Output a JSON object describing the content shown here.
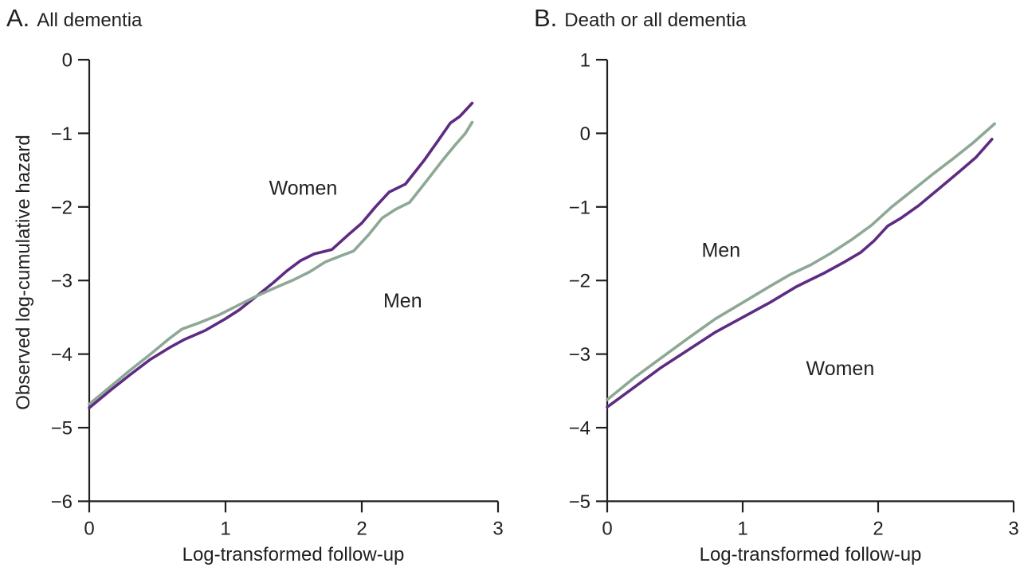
{
  "figure": {
    "background": "#ffffff",
    "text_color": "#231f20",
    "axis_color": "#231f20"
  },
  "chart_data": [
    {
      "type": "line",
      "panel": "A",
      "title_prefix": "A.",
      "title": "All dementia",
      "xlabel": "Log-transformed follow-up",
      "ylabel": "Observed log-cumulative hazard",
      "xlim": [
        0,
        3
      ],
      "ylim": [
        -6,
        0
      ],
      "grid": false,
      "legend_position": "inline-annotations",
      "x_ticks": {
        "values": [
          0,
          1,
          2,
          3
        ],
        "labels": [
          "0",
          "1",
          "2",
          "3"
        ]
      },
      "y_ticks": {
        "values": [
          0,
          -1,
          -2,
          -3,
          -4,
          -5,
          -6
        ],
        "labels": [
          "0",
          "−1",
          "−2",
          "−3",
          "−4",
          "−5",
          "−6"
        ]
      },
      "series": [
        {
          "name": "Women",
          "color": "#5e2b82",
          "annotation": {
            "x": 1.57,
            "y": -1.75
          },
          "points": [
            [
              0,
              -4.73
            ],
            [
              0.15,
              -4.5
            ],
            [
              0.3,
              -4.28
            ],
            [
              0.45,
              -4.07
            ],
            [
              0.6,
              -3.9
            ],
            [
              0.7,
              -3.8
            ],
            [
              0.85,
              -3.68
            ],
            [
              1.0,
              -3.52
            ],
            [
              1.1,
              -3.4
            ],
            [
              1.23,
              -3.21
            ],
            [
              1.35,
              -3.03
            ],
            [
              1.45,
              -2.87
            ],
            [
              1.55,
              -2.73
            ],
            [
              1.65,
              -2.64
            ],
            [
              1.78,
              -2.58
            ],
            [
              1.9,
              -2.38
            ],
            [
              2.0,
              -2.22
            ],
            [
              2.1,
              -2.0
            ],
            [
              2.2,
              -1.8
            ],
            [
              2.32,
              -1.69
            ],
            [
              2.46,
              -1.36
            ],
            [
              2.56,
              -1.1
            ],
            [
              2.65,
              -0.86
            ],
            [
              2.72,
              -0.77
            ],
            [
              2.81,
              -0.59
            ]
          ]
        },
        {
          "name": "Men",
          "color": "#8da894",
          "annotation": {
            "x": 2.3,
            "y": -3.28
          },
          "points": [
            [
              0,
              -4.68
            ],
            [
              0.15,
              -4.45
            ],
            [
              0.3,
              -4.22
            ],
            [
              0.45,
              -4.0
            ],
            [
              0.58,
              -3.8
            ],
            [
              0.68,
              -3.66
            ],
            [
              0.8,
              -3.58
            ],
            [
              0.95,
              -3.47
            ],
            [
              1.1,
              -3.33
            ],
            [
              1.23,
              -3.21
            ],
            [
              1.35,
              -3.11
            ],
            [
              1.5,
              -2.99
            ],
            [
              1.62,
              -2.88
            ],
            [
              1.73,
              -2.75
            ],
            [
              1.84,
              -2.67
            ],
            [
              1.94,
              -2.6
            ],
            [
              2.05,
              -2.38
            ],
            [
              2.15,
              -2.15
            ],
            [
              2.25,
              -2.03
            ],
            [
              2.35,
              -1.94
            ],
            [
              2.47,
              -1.66
            ],
            [
              2.6,
              -1.35
            ],
            [
              2.68,
              -1.17
            ],
            [
              2.76,
              -1.0
            ],
            [
              2.81,
              -0.85
            ]
          ]
        }
      ]
    },
    {
      "type": "line",
      "panel": "B",
      "title_prefix": "B.",
      "title": "Death or all dementia",
      "xlabel": "Log-transformed follow-up",
      "ylabel": "",
      "xlim": [
        0,
        3
      ],
      "ylim": [
        -5,
        1
      ],
      "grid": false,
      "legend_position": "inline-annotations",
      "x_ticks": {
        "values": [
          0,
          1,
          2,
          3
        ],
        "labels": [
          "0",
          "1",
          "2",
          "3"
        ]
      },
      "y_ticks": {
        "values": [
          1,
          0,
          -1,
          -2,
          -3,
          -4,
          -5
        ],
        "labels": [
          "1",
          "0",
          "−1",
          "−2",
          "−3",
          "−4",
          "−5"
        ]
      },
      "series": [
        {
          "name": "Women",
          "color": "#5e2b82",
          "annotation": {
            "x": 1.72,
            "y": -3.2
          },
          "points": [
            [
              0,
              -3.72
            ],
            [
              0.2,
              -3.45
            ],
            [
              0.4,
              -3.18
            ],
            [
              0.6,
              -2.94
            ],
            [
              0.8,
              -2.7
            ],
            [
              1.0,
              -2.5
            ],
            [
              1.2,
              -2.3
            ],
            [
              1.4,
              -2.08
            ],
            [
              1.6,
              -1.9
            ],
            [
              1.75,
              -1.75
            ],
            [
              1.87,
              -1.62
            ],
            [
              1.97,
              -1.46
            ],
            [
              2.07,
              -1.26
            ],
            [
              2.17,
              -1.15
            ],
            [
              2.3,
              -0.98
            ],
            [
              2.45,
              -0.75
            ],
            [
              2.6,
              -0.52
            ],
            [
              2.72,
              -0.33
            ],
            [
              2.84,
              -0.08
            ]
          ]
        },
        {
          "name": "Men",
          "color": "#8da894",
          "annotation": {
            "x": 0.84,
            "y": -1.59
          },
          "points": [
            [
              0,
              -3.62
            ],
            [
              0.2,
              -3.32
            ],
            [
              0.4,
              -3.05
            ],
            [
              0.6,
              -2.78
            ],
            [
              0.8,
              -2.52
            ],
            [
              1.0,
              -2.3
            ],
            [
              1.2,
              -2.08
            ],
            [
              1.35,
              -1.92
            ],
            [
              1.5,
              -1.79
            ],
            [
              1.65,
              -1.63
            ],
            [
              1.8,
              -1.45
            ],
            [
              1.95,
              -1.25
            ],
            [
              2.1,
              -1.0
            ],
            [
              2.25,
              -0.78
            ],
            [
              2.4,
              -0.56
            ],
            [
              2.55,
              -0.35
            ],
            [
              2.7,
              -0.13
            ],
            [
              2.86,
              0.13
            ]
          ]
        }
      ]
    }
  ]
}
